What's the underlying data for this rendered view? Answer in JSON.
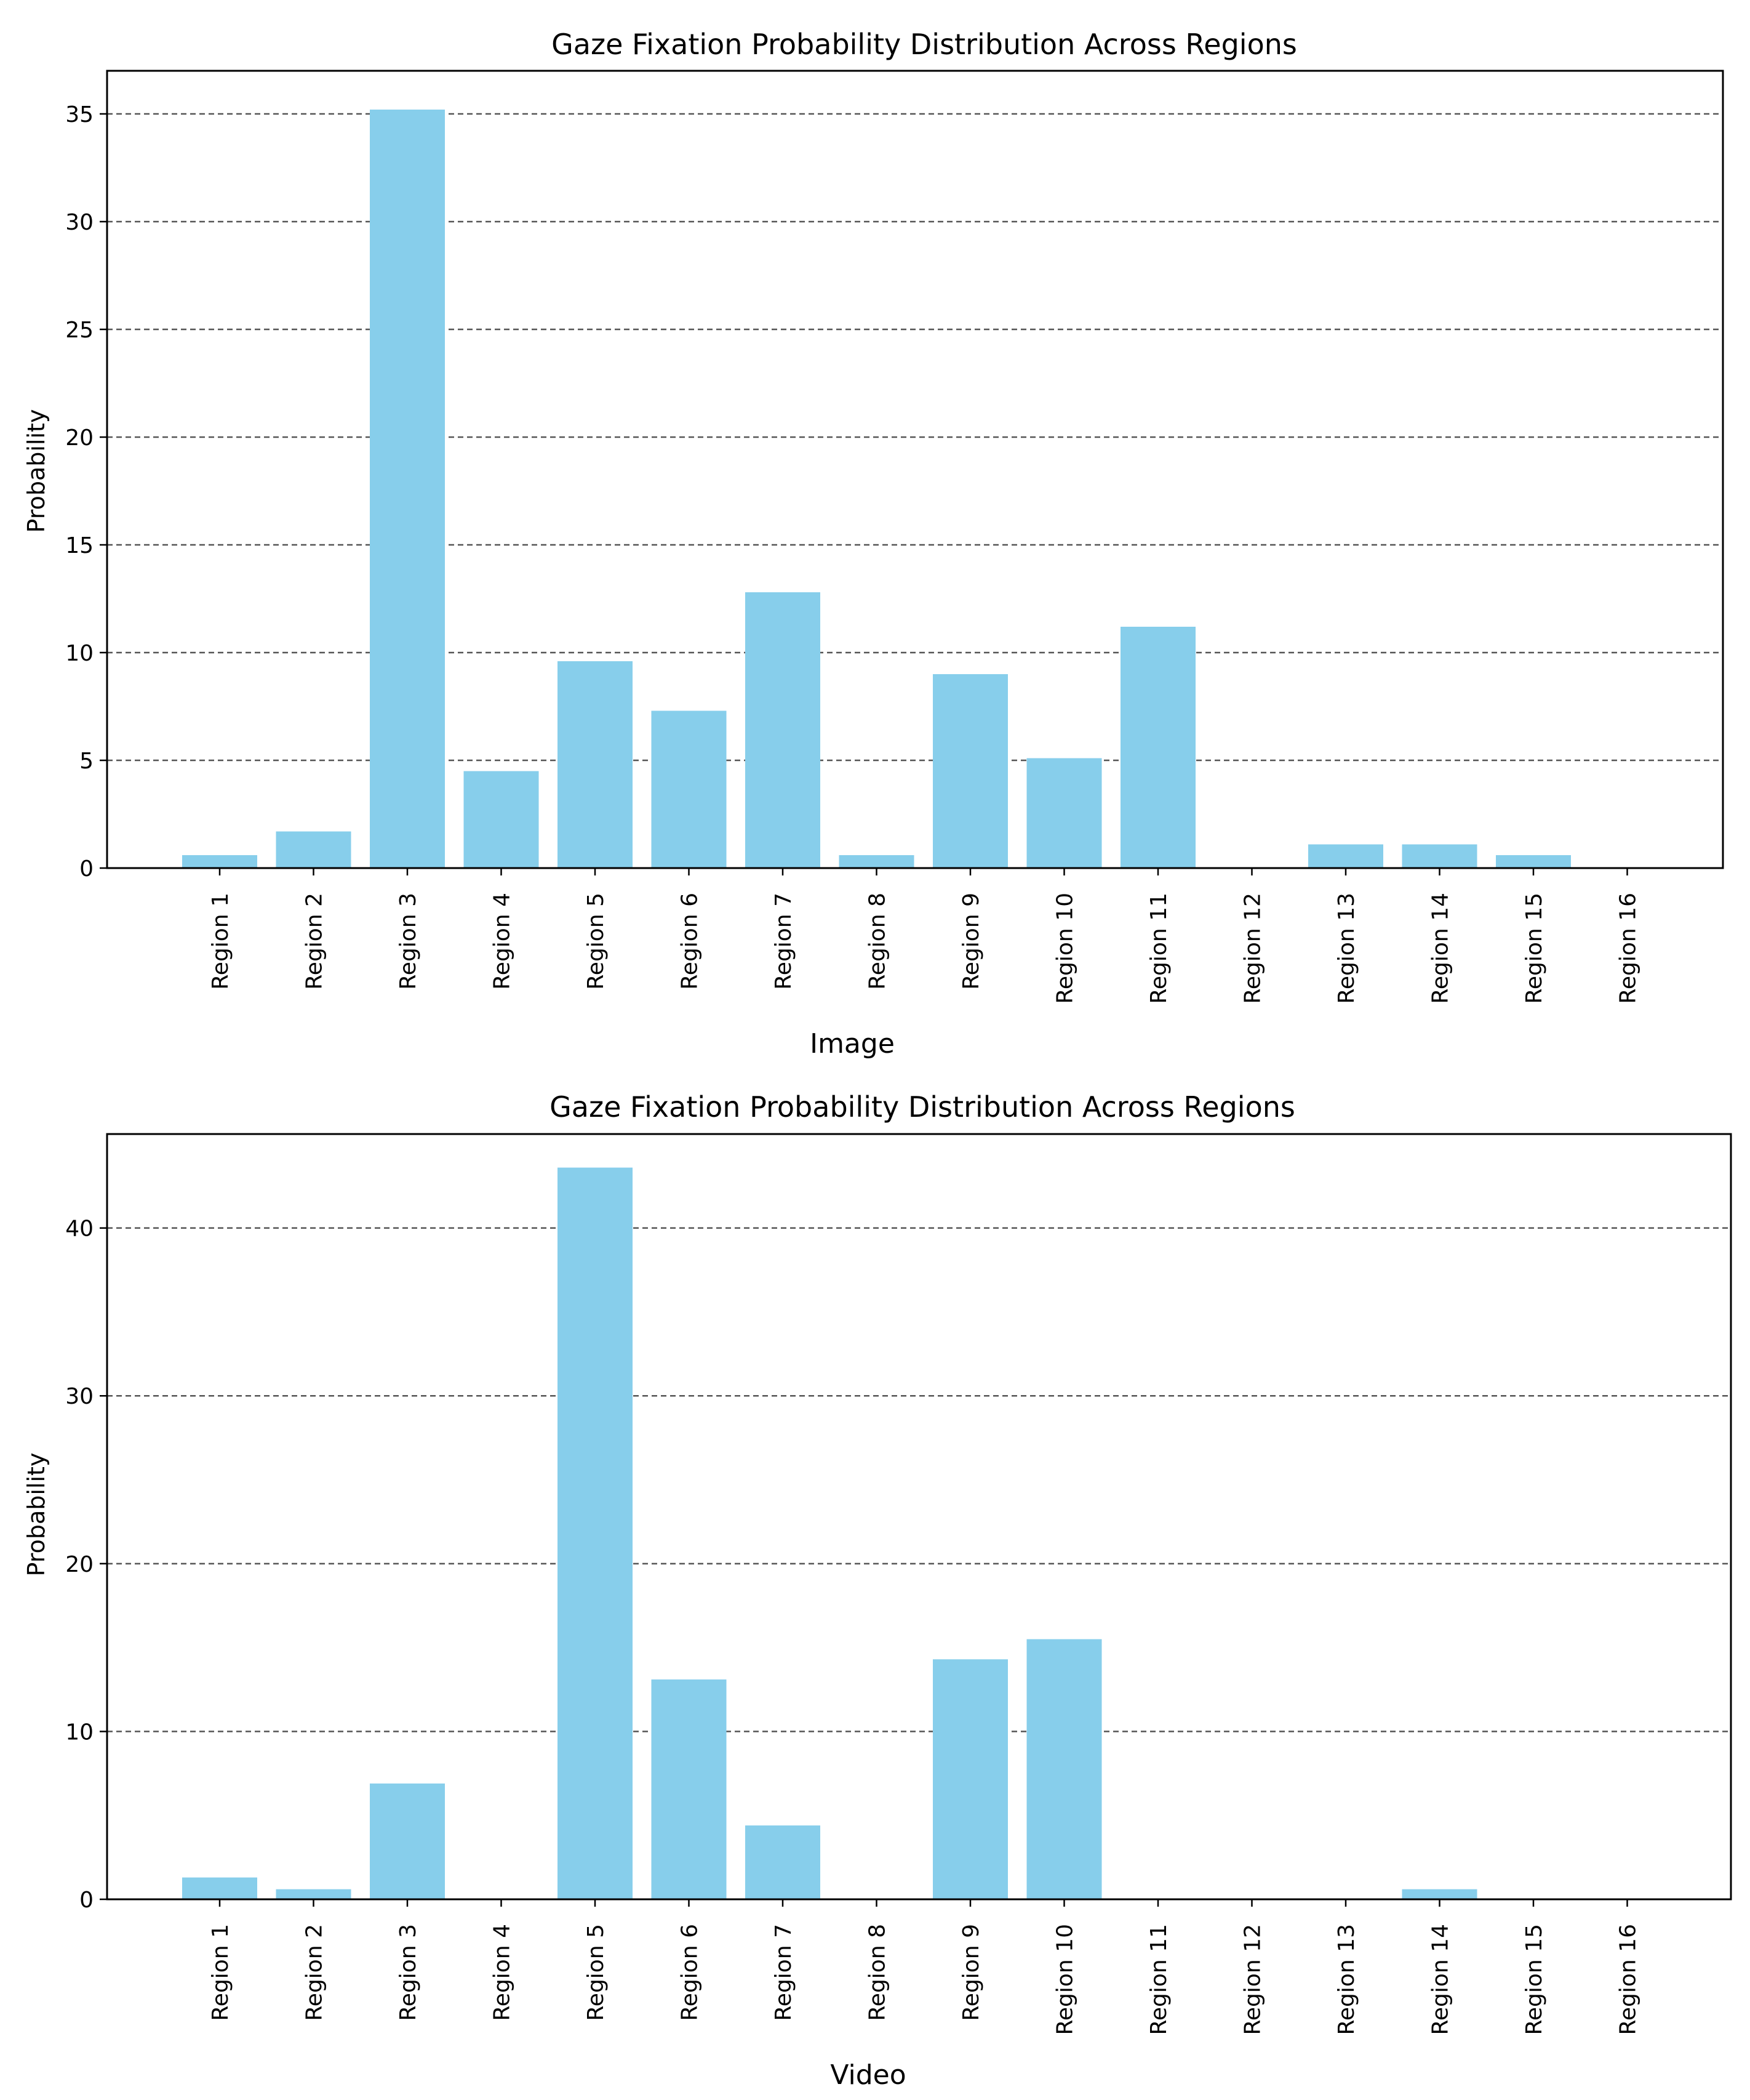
{
  "chart_data": [
    {
      "type": "bar",
      "title": "Gaze Fixation Probability Distribution Across Regions",
      "xlabel": "Image",
      "ylabel": "Probability",
      "categories": [
        "Region 1",
        "Region 2",
        "Region 3",
        "Region 4",
        "Region 5",
        "Region 6",
        "Region 7",
        "Region 8",
        "Region 9",
        "Region 10",
        "Region 11",
        "Region 12",
        "Region 13",
        "Region 14",
        "Region 15",
        "Region 16"
      ],
      "values": [
        0.6,
        1.7,
        35.2,
        4.5,
        9.6,
        7.3,
        12.8,
        0.6,
        9.0,
        5.1,
        11.2,
        0.0,
        1.1,
        1.1,
        0.6,
        0.0
      ],
      "ylim": [
        0,
        37
      ],
      "yticks": [
        0,
        5,
        10,
        15,
        20,
        25,
        30,
        35
      ],
      "grid": "y-dashed",
      "color": "#87ceeb"
    },
    {
      "type": "bar",
      "title": "Gaze Fixation Probability Distribution Across Regions",
      "xlabel": "Video",
      "ylabel": "Probability",
      "categories": [
        "Region 1",
        "Region 2",
        "Region 3",
        "Region 4",
        "Region 5",
        "Region 6",
        "Region 7",
        "Region 8",
        "Region 9",
        "Region 10",
        "Region 11",
        "Region 12",
        "Region 13",
        "Region 14",
        "Region 15",
        "Region 16"
      ],
      "values": [
        1.3,
        0.6,
        6.9,
        0.0,
        43.6,
        13.1,
        4.4,
        0.0,
        14.3,
        15.5,
        0.0,
        0.0,
        0.0,
        0.6,
        0.0,
        0.0
      ],
      "ylim": [
        0,
        45.6
      ],
      "yticks": [
        0,
        10,
        20,
        30,
        40
      ],
      "grid": "y-dashed",
      "color": "#87ceeb"
    }
  ]
}
